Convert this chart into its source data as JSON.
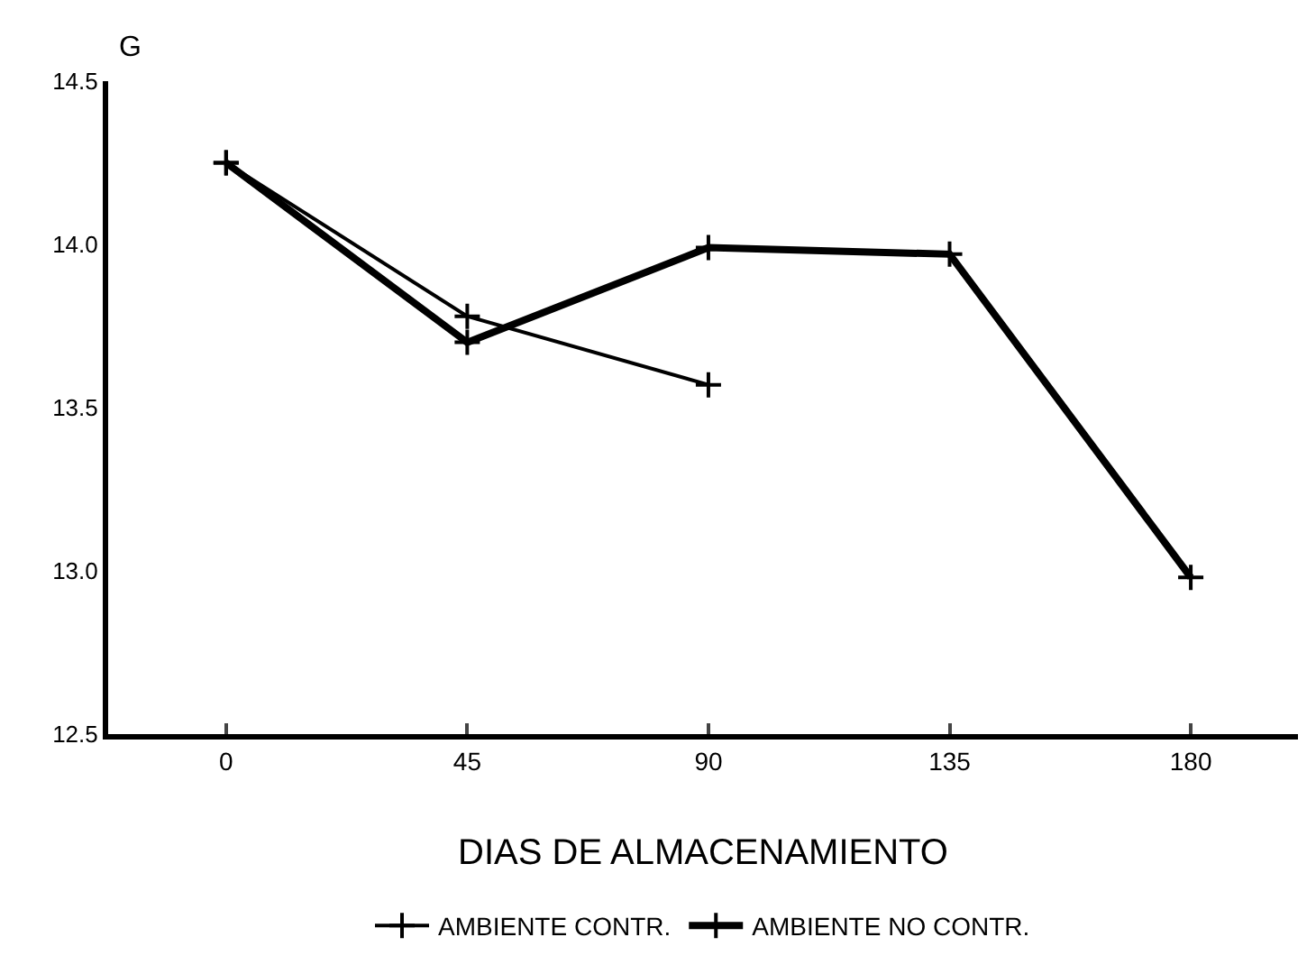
{
  "chart_data": {
    "type": "line",
    "xlabel": "DIAS DE ALMACENAMIENTO",
    "ylabel": "G",
    "x": [
      0,
      45,
      90,
      135,
      180
    ],
    "xlim": [
      -22,
      200
    ],
    "xticks": [
      0,
      45,
      90,
      135,
      180
    ],
    "ylim": [
      12.5,
      14.5
    ],
    "yticks": [
      {
        "value": 12.5,
        "label": "12.5"
      },
      {
        "value": 13.0,
        "label": "13.0"
      },
      {
        "value": 13.5,
        "label": "13.5"
      },
      {
        "value": 14.0,
        "label": "14.0"
      },
      {
        "value": 14.5,
        "label": "14.5"
      }
    ],
    "series": [
      {
        "name": "AMBIENTE CONTR.",
        "color": "#000000",
        "values": [
          14.25,
          13.78,
          13.57,
          null,
          null
        ]
      },
      {
        "name": "AMBIENTE NO CONTR.",
        "color": "#000000",
        "values": [
          14.25,
          13.7,
          13.99,
          13.97,
          12.98
        ]
      }
    ],
    "grid": false,
    "legend": "bottom",
    "marker": "cross",
    "line_style": "solid"
  }
}
